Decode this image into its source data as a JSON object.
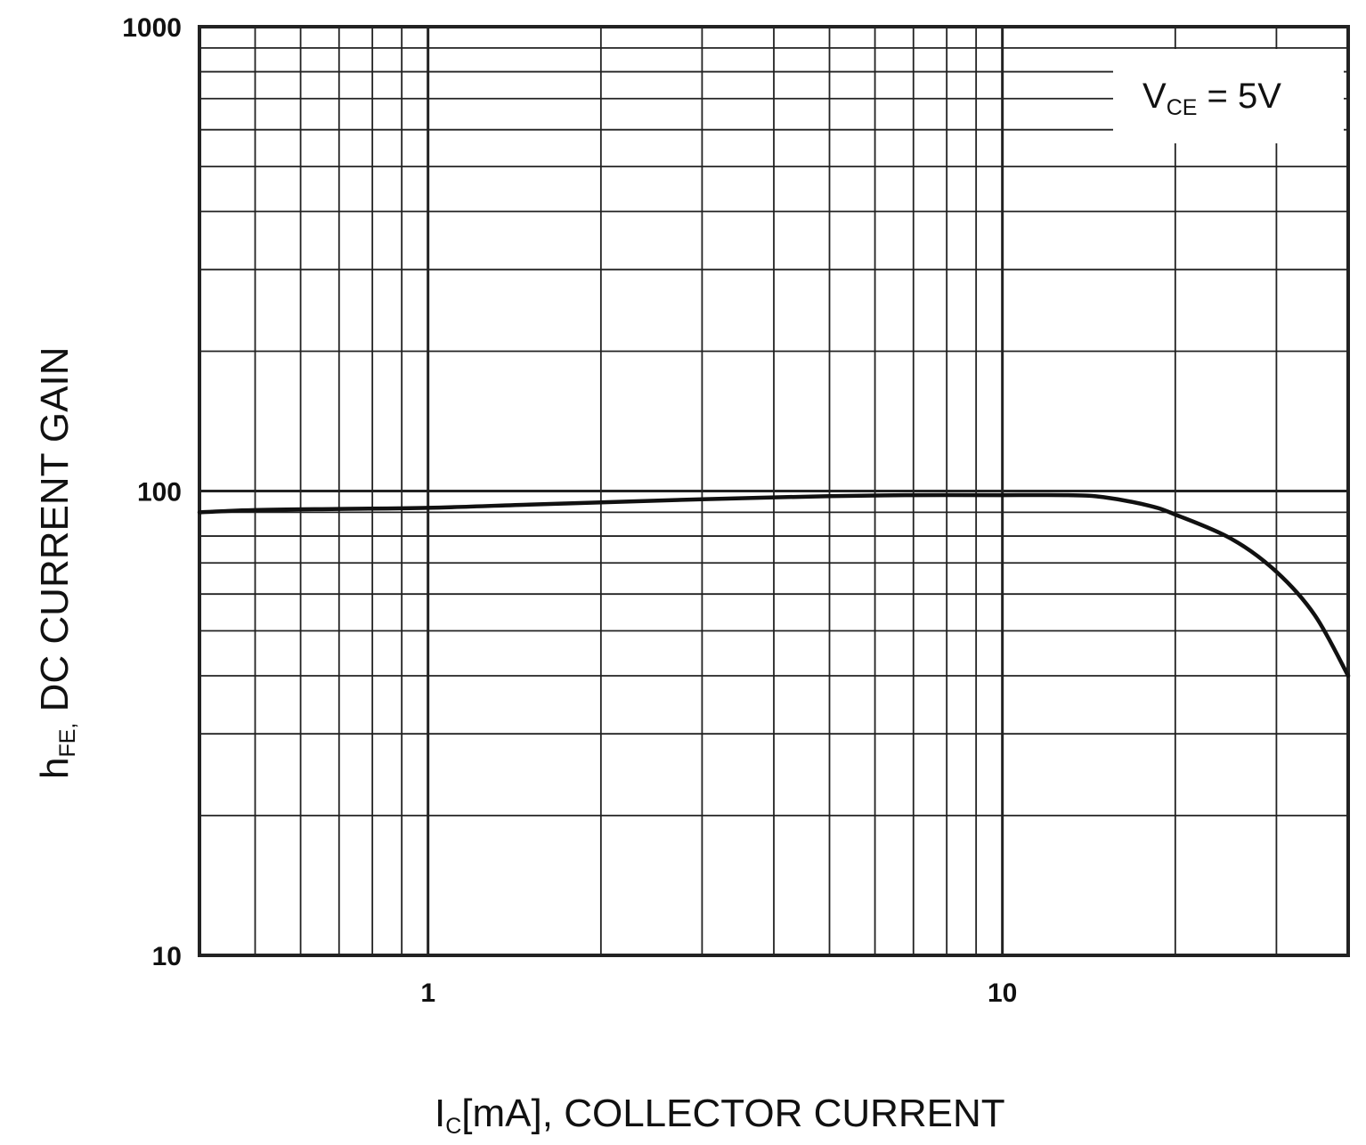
{
  "chart_data": {
    "type": "line",
    "title": "",
    "xlabel": {
      "main": "I",
      "sub": "C",
      "rest": "[mA], COLLECTOR CURRENT"
    },
    "ylabel": {
      "main": "h",
      "sub": "FE,",
      "rest": " DC CURRENT GAIN"
    },
    "xscale": "log",
    "yscale": "log",
    "xlim": [
      0.4,
      40
    ],
    "ylim": [
      10,
      1000
    ],
    "x_tick_labels": [
      "1",
      "10"
    ],
    "y_tick_labels": [
      "10",
      "100",
      "1000"
    ],
    "grid": true,
    "annotation": {
      "main": "V",
      "sub": "CE",
      "rest": " = 5V"
    },
    "annotation_position": "top-right",
    "series": [
      {
        "x": [
          0.4,
          0.5,
          0.7,
          1,
          1.5,
          2,
          3,
          5,
          7,
          10,
          13,
          15,
          18,
          20,
          25,
          30,
          35,
          40
        ],
        "y": [
          90,
          91,
          91.5,
          92,
          93.5,
          94.5,
          96,
          97.5,
          98,
          98,
          98,
          97,
          93,
          89,
          79,
          67,
          54,
          40
        ]
      }
    ],
    "colors": {
      "line": "#111111",
      "grid": "#222222",
      "background": "#ffffff"
    }
  }
}
